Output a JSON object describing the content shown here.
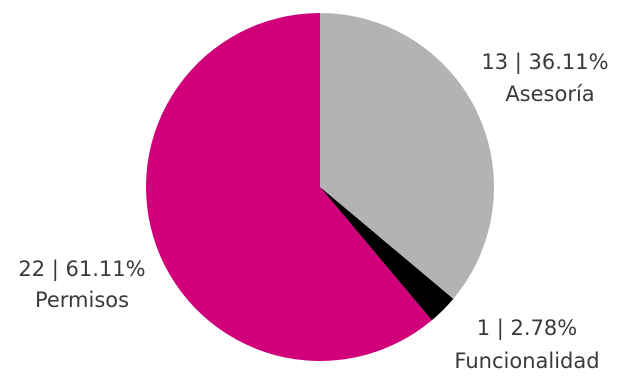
{
  "chart_data": {
    "type": "pie",
    "slices": [
      {
        "category": "Asesoría",
        "value": 13,
        "percent": "36.11%",
        "value_label": "13 | 36.11%",
        "color": "#b3b3b3"
      },
      {
        "category": "Funcionalidad",
        "value": 1,
        "percent": "2.78%",
        "value_label": "1 | 2.78%",
        "color": "#000000"
      },
      {
        "category": "Permisos",
        "value": 22,
        "percent": "61.11%",
        "value_label": "22 | 61.11%",
        "color": "#d1007a"
      }
    ],
    "total": 36,
    "start_angle": "12 o'clock",
    "direction": "clockwise",
    "legend": "none"
  }
}
